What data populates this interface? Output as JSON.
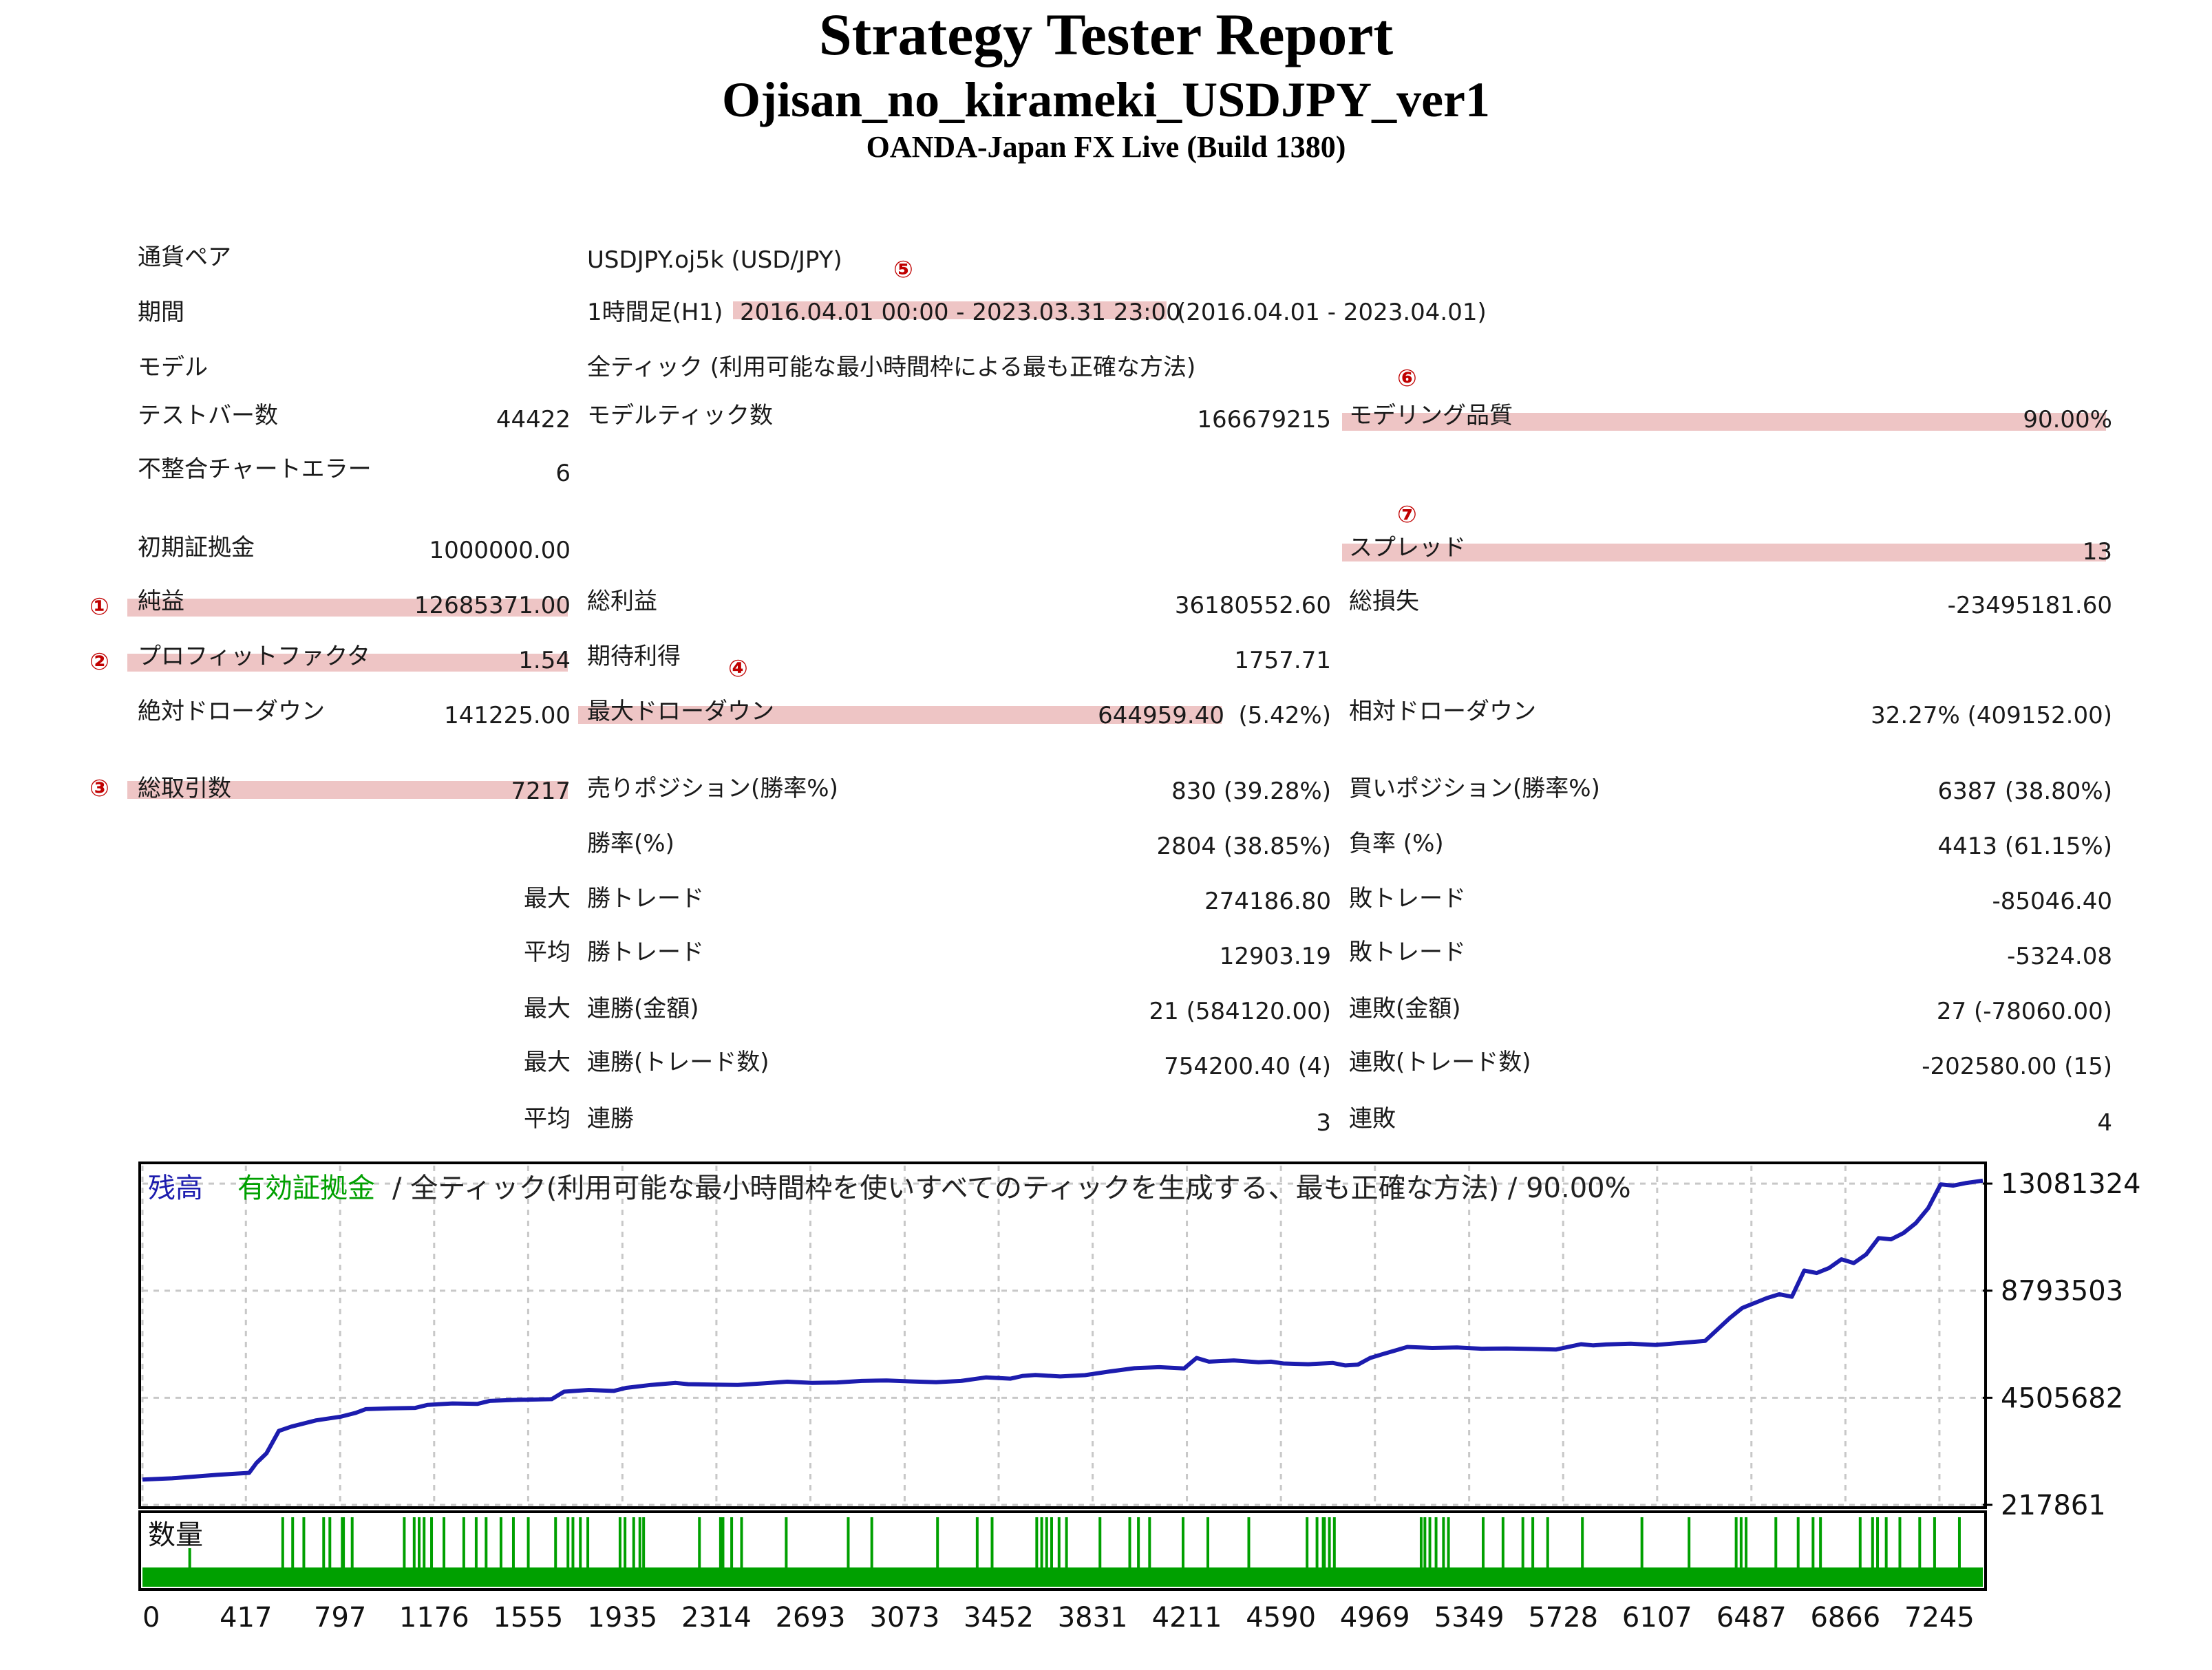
{
  "report": {
    "title": "Strategy Tester Report",
    "ea_name": "Ojisan_no_kirameki_USDJPY_ver1",
    "broker": "OANDA-Japan FX Live (Build 1380)"
  },
  "summary": {
    "pair_label": "通貨ペア",
    "pair_value": "USDJPY.oj5k (USD/JPY)",
    "period_label": "期間",
    "period_prefix": "1時間足(H1)",
    "period_range": "2016.04.01 00:00 - 2023.03.31 23:00",
    "period_suffix": "(2016.04.01 - 2023.04.01)",
    "model_label": "モデル",
    "model_value": "全ティック (利用可能な最小時間枠による最も正確な方法)",
    "bars_label": "テストバー数",
    "bars_value": "44422",
    "ticks_label": "モデルティック数",
    "ticks_value": "166679215",
    "quality_label": "モデリング品質",
    "quality_value": "90.00%",
    "mismatch_label": "不整合チャートエラー",
    "mismatch_value": "6",
    "deposit_label": "初期証拠金",
    "deposit_value": "1000000.00",
    "spread_label": "スプレッド",
    "spread_value": "13",
    "net_label": "純益",
    "net_value": "12685371.00",
    "gross_profit_label": "総利益",
    "gross_profit_value": "36180552.60",
    "gross_loss_label": "総損失",
    "gross_loss_value": "-23495181.60",
    "pf_label": "プロフィットファクタ",
    "pf_value": "1.54",
    "expected_label": "期待利得",
    "expected_value": "1757.71",
    "abs_dd_label": "絶対ドローダウン",
    "abs_dd_value": "141225.00",
    "max_dd_label": "最大ドローダウン",
    "max_dd_value": "644959.40",
    "max_dd_pct": "(5.42%)",
    "rel_dd_label": "相対ドローダウン",
    "rel_dd_value": "32.27% (409152.00)",
    "trades_label": "総取引数",
    "trades_value": "7217",
    "short_label": "売りポジション(勝率%)",
    "short_value": "830 (39.28%)",
    "long_label": "買いポジション(勝率%)",
    "long_value": "6387 (38.80%)",
    "win_label": "勝率(%)",
    "win_value": "2804 (38.85%)",
    "loss_label": "負率 (%)",
    "loss_value": "4413 (61.15%)",
    "max_word": "最大",
    "avg_word": "平均",
    "win_trade_label": "勝トレード",
    "loss_trade_label": "敗トレード",
    "max_win_trade": "274186.80",
    "max_loss_trade": "-85046.40",
    "avg_win_trade": "12903.19",
    "avg_loss_trade": "-5324.08",
    "consec_win_money_label": "連勝(金額)",
    "consec_win_money_value": "21 (584120.00)",
    "consec_loss_money_label": "連敗(金額)",
    "consec_loss_money_value": "27 (-78060.00)",
    "consec_win_count_label": "連勝(トレード数)",
    "consec_win_count_value": "754200.40 (4)",
    "consec_loss_count_label": "連敗(トレード数)",
    "consec_loss_count_value": "-202580.00 (15)",
    "avg_consec_win_label": "連勝",
    "avg_consec_win_value": "3",
    "avg_consec_loss_label": "連敗",
    "avg_consec_loss_value": "4"
  },
  "markers": {
    "m1": "①",
    "m2": "②",
    "m3": "③",
    "m4": "④",
    "m5": "⑤",
    "m6": "⑥",
    "m7": "⑦"
  },
  "chart_data": {
    "type": "line",
    "legend_balance": "残高",
    "legend_equity": "有効証拠金",
    "legend_rest": "/ 全ティック(利用可能な最小時間枠を使いすべてのティックを生成する、最も正確な方法) / 90.00%",
    "volume_label": "数量",
    "balance_color": "#1c1cae",
    "equity_color": "#00a000",
    "volume_color": "#00a000",
    "y_ticks": [
      "13081324",
      "8793503",
      "4505682",
      "217861"
    ],
    "y_tick_values": [
      13081324,
      8793503,
      4505682,
      217861
    ],
    "x_ticks": [
      "0",
      "417",
      "797",
      "1176",
      "1555",
      "1935",
      "2314",
      "2693",
      "3073",
      "3452",
      "3831",
      "4211",
      "4590",
      "4969",
      "5349",
      "5728",
      "6107",
      "6487",
      "6866",
      "7245"
    ],
    "x_range": [
      0,
      7420
    ],
    "y_range": [
      217861,
      13800000
    ],
    "series": [
      {
        "name": "残高",
        "x": [
          0,
          120,
          300,
          430,
          460,
          500,
          550,
          600,
          700,
          800,
          860,
          900,
          1000,
          1100,
          1150,
          1250,
          1350,
          1400,
          1500,
          1650,
          1700,
          1800,
          1900,
          1950,
          2050,
          2150,
          2200,
          2300,
          2400,
          2500,
          2600,
          2700,
          2800,
          2900,
          3000,
          3100,
          3200,
          3300,
          3400,
          3500,
          3550,
          3600,
          3700,
          3800,
          3900,
          4000,
          4100,
          4200,
          4250,
          4300,
          4400,
          4500,
          4550,
          4600,
          4700,
          4800,
          4850,
          4900,
          4950,
          5000,
          5100,
          5200,
          5300,
          5400,
          5500,
          5600,
          5700,
          5800,
          5850,
          5900,
          6000,
          6100,
          6200,
          6300,
          6400,
          6450,
          6500,
          6550,
          6600,
          6650,
          6700,
          6750,
          6800,
          6850,
          6900,
          6950,
          7000,
          7050,
          7100,
          7150,
          7200,
          7250,
          7300,
          7350,
          7420
        ],
        "y": [
          1230000,
          1280000,
          1420000,
          1500000,
          1900000,
          2280000,
          3180000,
          3350000,
          3600000,
          3750000,
          3900000,
          4050000,
          4080000,
          4100000,
          4220000,
          4280000,
          4260000,
          4380000,
          4420000,
          4450000,
          4750000,
          4820000,
          4780000,
          4900000,
          5020000,
          5100000,
          5050000,
          5030000,
          5020000,
          5080000,
          5150000,
          5100000,
          5120000,
          5180000,
          5200000,
          5160000,
          5130000,
          5180000,
          5320000,
          5270000,
          5380000,
          5420000,
          5360000,
          5410000,
          5560000,
          5690000,
          5730000,
          5680000,
          6100000,
          5950000,
          6000000,
          5930000,
          5950000,
          5880000,
          5850000,
          5900000,
          5800000,
          5830000,
          6100000,
          6250000,
          6540000,
          6500000,
          6520000,
          6470000,
          6480000,
          6460000,
          6440000,
          6650000,
          6600000,
          6640000,
          6670000,
          6620000,
          6700000,
          6780000,
          7700000,
          8100000,
          8300000,
          8500000,
          8650000,
          8550000,
          9600000,
          9500000,
          9700000,
          10050000,
          9900000,
          10250000,
          10900000,
          10850000,
          11100000,
          11500000,
          12100000,
          13050000,
          13000000,
          13100000,
          13200000
        ]
      }
    ],
    "volume_clusters": [
      185,
      560,
      600,
      645,
      725,
      750,
      800,
      805,
      840,
      1050,
      1090,
      1110,
      1130,
      1160,
      1210,
      1290,
      1340,
      1380,
      1440,
      1490,
      1550,
      1660,
      1710,
      1730,
      1760,
      1790,
      1920,
      1940,
      1975,
      2000,
      2015,
      2240,
      2325,
      2330,
      2335,
      2370,
      2410,
      2590,
      2840,
      2935,
      3200,
      3360,
      3420,
      3600,
      3620,
      3640,
      3660,
      3690,
      3720,
      3855,
      3975,
      4010,
      4055,
      4190,
      4290,
      4455,
      4690,
      4730,
      4755,
      4760,
      4780,
      4800,
      5150,
      5165,
      5185,
      5210,
      5240,
      5260,
      5400,
      5480,
      5560,
      5600,
      5660,
      5800,
      6040,
      6230,
      6420,
      6440,
      6460,
      6580,
      6670,
      6730,
      6760,
      6920,
      6970,
      6990,
      7025,
      7080,
      7160,
      7220,
      7320,
      7540
    ]
  }
}
